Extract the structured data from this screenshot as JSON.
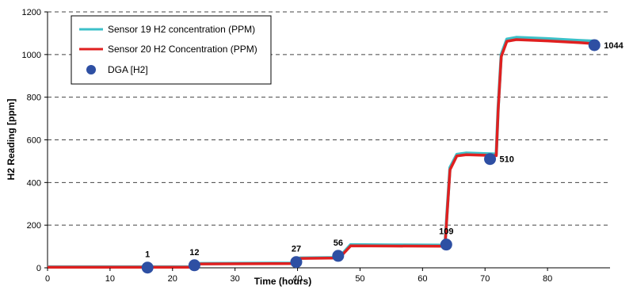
{
  "chart_data": {
    "type": "line",
    "xlabel": "Time (hours)",
    "ylabel": "H2 Reading [ppm]",
    "xlim": [
      0,
      90
    ],
    "ylim": [
      0,
      1200
    ],
    "xticks": [
      0,
      10,
      20,
      30,
      40,
      50,
      60,
      70,
      80
    ],
    "yticks": [
      0,
      200,
      400,
      600,
      800,
      1000,
      1200
    ],
    "grid": "horizontal dashed",
    "legend_position": "top-left",
    "series": [
      {
        "name": "Sensor 19 H2 concentration (PPM)",
        "color": "#3cc0c8",
        "x": [
          0,
          23.2,
          23.8,
          39.8,
          40.4,
          46.4,
          47.0,
          48.5,
          55,
          63.6,
          63.9,
          64.4,
          65.5,
          67,
          71.8,
          72.1,
          72.6,
          73.5,
          75,
          80,
          85,
          88
        ],
        "y": [
          4,
          4,
          20,
          22,
          46,
          48,
          60,
          108,
          107,
          106,
          250,
          470,
          532,
          538,
          533,
          750,
          1000,
          1072,
          1080,
          1074,
          1066,
          1062
        ]
      },
      {
        "name": "Sensor 20 H2 Concentration (PPM)",
        "color": "#e02020",
        "x": [
          0,
          23.2,
          23.8,
          39.8,
          40.4,
          46.4,
          47.0,
          48.5,
          55,
          63.6,
          63.9,
          64.4,
          65.5,
          67,
          71.8,
          72.1,
          72.6,
          73.5,
          75,
          80,
          85,
          88
        ],
        "y": [
          3,
          3,
          18,
          20,
          44,
          46,
          56,
          103,
          102,
          101,
          240,
          460,
          525,
          530,
          526,
          740,
          990,
          1062,
          1070,
          1064,
          1056,
          1050
        ]
      },
      {
        "name": "DGA [H2]",
        "type": "scatter",
        "color": "#2e4fa3",
        "x": [
          16,
          23.5,
          39.8,
          46.5,
          63.8,
          70.8,
          87.5
        ],
        "y": [
          1,
          12,
          27,
          56,
          109,
          510,
          1044
        ],
        "labels": [
          "1",
          "12",
          "27",
          "56",
          "109",
          "510",
          "1044"
        ]
      }
    ]
  }
}
